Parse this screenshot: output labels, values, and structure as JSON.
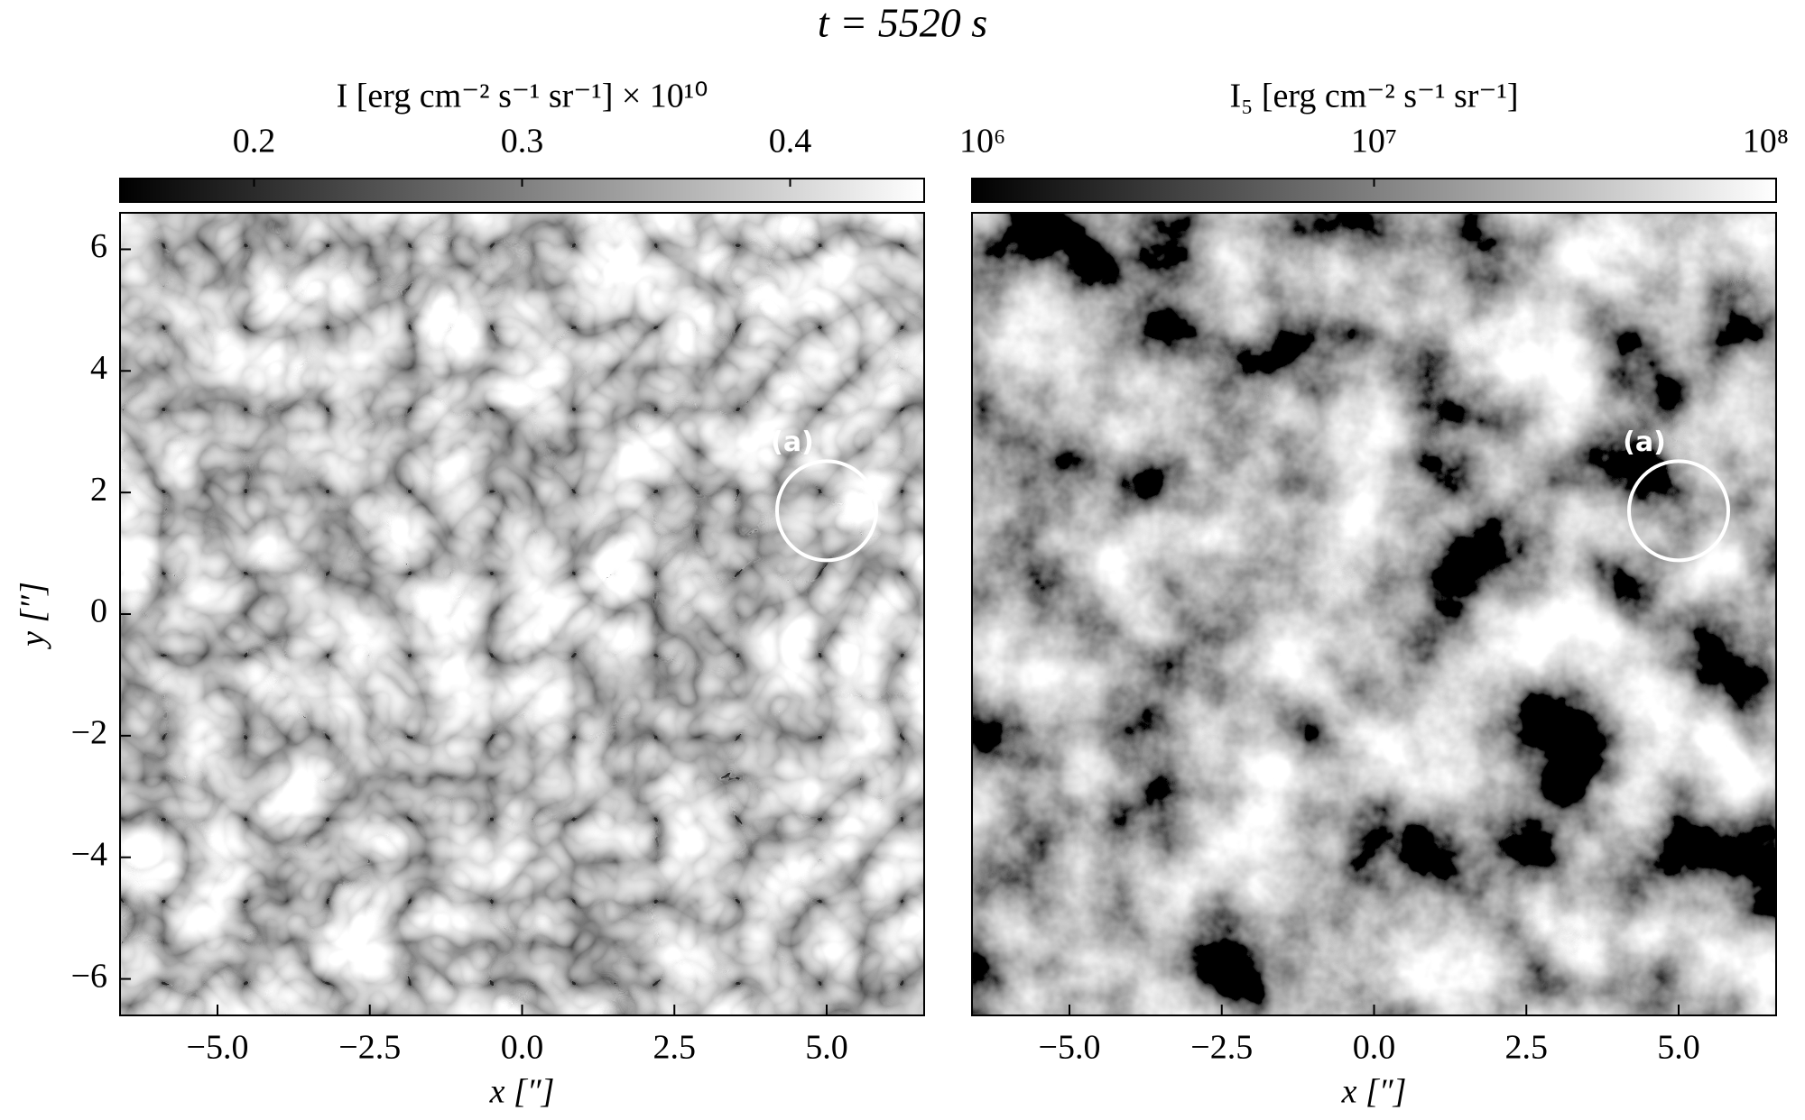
{
  "title": "t = 5520 s",
  "chart_data": [
    {
      "type": "image",
      "colormap": "gray",
      "colorbar_label": "I [erg cm⁻² s⁻¹ sr⁻¹] × 10¹⁰",
      "clim": [
        0.15,
        0.45
      ],
      "cticks": [
        0.2,
        0.3,
        0.4
      ],
      "x_label": "x [″]",
      "y_label": "y [″]",
      "xlim": [
        -6.6,
        6.6
      ],
      "ylim": [
        -6.6,
        6.6
      ],
      "xticks": [
        {
          "value": -5,
          "label": "−5.0"
        },
        {
          "value": -2.5,
          "label": "−2.5"
        },
        {
          "value": 0,
          "label": "0.0"
        },
        {
          "value": 2.5,
          "label": "2.5"
        },
        {
          "value": 5,
          "label": "5.0"
        }
      ],
      "yticks": [
        {
          "value": -6,
          "label": "−6"
        },
        {
          "value": -4,
          "label": "−4"
        },
        {
          "value": -2,
          "label": "−2"
        },
        0,
        2,
        4,
        6
      ],
      "annotations": [
        {
          "text": "(a)",
          "x": 5.0,
          "y": 1.7
        }
      ]
    },
    {
      "type": "image",
      "colormap": "gray",
      "colorbar_label": "I₅ [erg cm⁻² s⁻¹ sr⁻¹]",
      "clim": [
        1000000,
        100000000
      ],
      "clog": true,
      "cticks": [
        {
          "value": 1000000,
          "label": "10⁶"
        },
        {
          "value": 10000000,
          "label": "10⁷"
        },
        {
          "value": 100000000,
          "label": "10⁸"
        }
      ],
      "x_label": "x [″]",
      "xlim": [
        -6.6,
        6.6
      ],
      "ylim": [
        -6.6,
        6.6
      ],
      "xticks": [
        {
          "value": -5,
          "label": "−5.0"
        },
        {
          "value": -2.5,
          "label": "−2.5"
        },
        {
          "value": 0,
          "label": "0.0"
        },
        {
          "value": 2.5,
          "label": "2.5"
        },
        {
          "value": 5,
          "label": "5.0"
        }
      ],
      "annotations": [
        {
          "text": "(a)",
          "x": 5.0,
          "y": 1.7
        }
      ]
    }
  ]
}
